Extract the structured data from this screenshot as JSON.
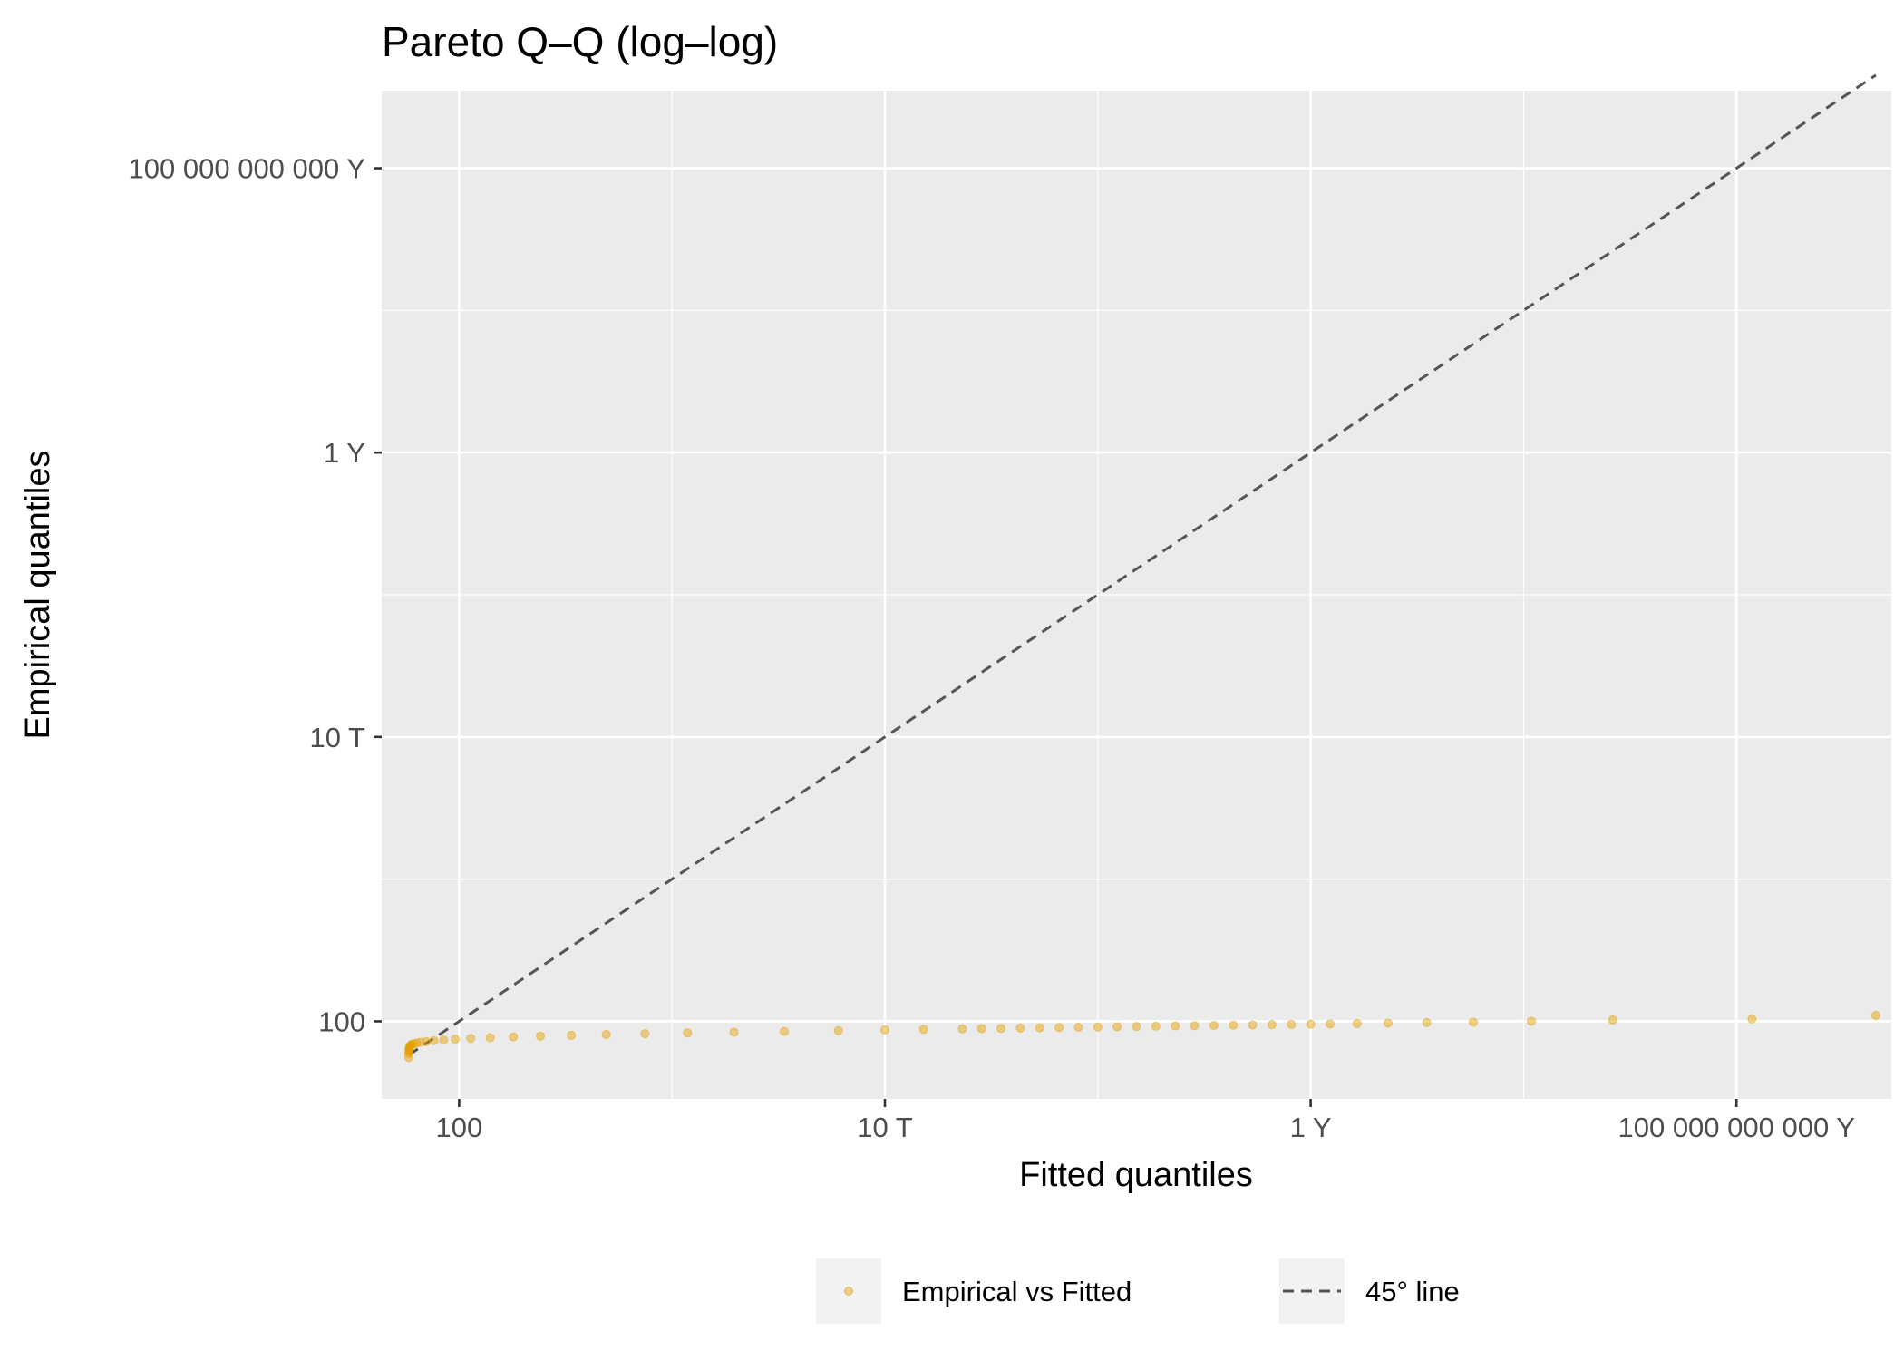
{
  "chart_data": {
    "type": "scatter",
    "title": "Pareto Q–Q (log–log)",
    "xlabel": "Fitted quantiles",
    "ylabel": "Empirical quantiles",
    "x_scale": "log10",
    "y_scale": "log10",
    "xlim": [
      1,
      1e+39
    ],
    "ylim": [
      0.1,
      1e+38
    ],
    "x_ticks": [
      {
        "value": 100,
        "label": "100"
      },
      {
        "value": 10000000000000.0,
        "label": "10 T"
      },
      {
        "value": 1e+24,
        "label": "1 Y"
      },
      {
        "value": 1e+35,
        "label": "100 000 000 000 Y"
      }
    ],
    "y_ticks": [
      {
        "value": 100,
        "label": "100"
      },
      {
        "value": 10000000000000.0,
        "label": "10 T"
      },
      {
        "value": 1e+24,
        "label": "1 Y"
      },
      {
        "value": 1e+35,
        "label": "100 000 000 000 Y"
      }
    ],
    "grid": true,
    "background": "#ebebeb",
    "point_color": "#E69F00",
    "line_color": "#555555",
    "series": [
      {
        "name": "Empirical vs Fitted",
        "kind": "points",
        "x_log10": [
          0.7,
          0.702,
          0.704,
          0.707,
          0.71,
          0.714,
          0.72,
          0.73,
          0.75,
          0.78,
          0.82,
          0.9,
          1.0,
          1.15,
          1.35,
          1.6,
          1.9,
          2.3,
          2.8,
          3.4,
          4.1,
          4.9,
          5.8,
          6.8,
          7.9,
          9.1,
          10.4,
          11.8,
          13.0,
          14.0,
          15.0,
          15.5,
          16.0,
          16.5,
          17.0,
          17.5,
          18.0,
          18.5,
          19.0,
          19.5,
          20.0,
          20.5,
          21.0,
          21.5,
          22.0,
          22.5,
          23.0,
          23.5,
          24.0,
          24.5,
          25.2,
          26.0,
          27.0,
          28.2,
          29.7,
          31.8,
          35.4,
          38.6
        ],
        "y_log10": [
          0.6,
          0.75,
          0.82,
          0.88,
          0.93,
          0.97,
          1.0,
          1.04,
          1.08,
          1.11,
          1.13,
          1.16,
          1.19,
          1.22,
          1.25,
          1.28,
          1.31,
          1.34,
          1.37,
          1.4,
          1.43,
          1.46,
          1.49,
          1.52,
          1.55,
          1.58,
          1.61,
          1.64,
          1.67,
          1.69,
          1.71,
          1.72,
          1.73,
          1.74,
          1.75,
          1.76,
          1.77,
          1.78,
          1.79,
          1.8,
          1.81,
          1.82,
          1.83,
          1.84,
          1.85,
          1.86,
          1.87,
          1.88,
          1.89,
          1.9,
          1.91,
          1.93,
          1.95,
          1.97,
          2.0,
          2.05,
          2.09,
          2.23
        ]
      },
      {
        "name": "45° line",
        "kind": "dashed-line",
        "x_log10": [
          0.7,
          38.6
        ],
        "y_log10": [
          0.7,
          38.6
        ]
      }
    ],
    "legend": {
      "position": "bottom",
      "items": [
        {
          "label": "Empirical vs Fitted",
          "key": "point"
        },
        {
          "label": "45° line",
          "key": "dashed-line"
        }
      ]
    }
  }
}
